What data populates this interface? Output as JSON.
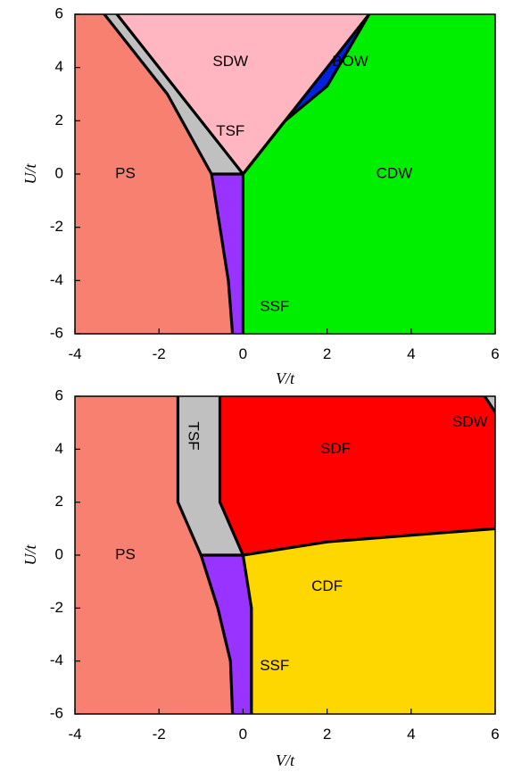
{
  "chart_data": [
    {
      "type": "area",
      "xlabel": "V/t",
      "ylabel": "U/t",
      "xlim": [
        -4,
        6
      ],
      "ylim": [
        -6,
        6
      ],
      "xticks": [
        -4,
        -2,
        0,
        2,
        4,
        6
      ],
      "yticks": [
        -6,
        -4,
        -2,
        0,
        2,
        4,
        6
      ],
      "grid": false,
      "regions": [
        {
          "name": "PS",
          "color": "#f88070",
          "polygon": [
            [
              -4,
              -6
            ],
            [
              -0.25,
              -6
            ],
            [
              -0.35,
              -4
            ],
            [
              -0.55,
              -2
            ],
            [
              -0.75,
              0
            ],
            [
              -1.8,
              3
            ],
            [
              -3.3,
              6
            ],
            [
              -4,
              6
            ]
          ],
          "label_at": [
            -2.8,
            0
          ]
        },
        {
          "name": "TSF",
          "color": "#c0c0c0",
          "polygon": [
            [
              -0.75,
              0
            ],
            [
              0,
              0
            ],
            [
              -3.0,
              6
            ],
            [
              -3.3,
              6
            ],
            [
              -1.8,
              3
            ]
          ],
          "label_at": [
            -0.3,
            1.6
          ]
        },
        {
          "name": "SDW",
          "color": "#ffb6c1",
          "polygon": [
            [
              0,
              0
            ],
            [
              -3.0,
              6
            ],
            [
              3.0,
              6
            ],
            [
              1.0,
              2.0
            ]
          ],
          "label_at": [
            -0.3,
            4.2
          ]
        },
        {
          "name": "BOW",
          "color": "#0022dd",
          "polygon": [
            [
              1.0,
              2.0
            ],
            [
              2.8,
              5.5
            ],
            [
              2.0,
              3.3
            ]
          ],
          "label_at": [
            2.55,
            4.2
          ]
        },
        {
          "name": "CDW",
          "color": "#00ee00",
          "polygon": [
            [
              0,
              0
            ],
            [
              1.0,
              2.0
            ],
            [
              2.0,
              3.3
            ],
            [
              2.8,
              5.5
            ],
            [
              3.0,
              6
            ],
            [
              6,
              6
            ],
            [
              6,
              -6
            ],
            [
              0,
              -6
            ]
          ],
          "label_at": [
            3.6,
            0
          ]
        },
        {
          "name": "SSF",
          "color": "#9933ff",
          "polygon": [
            [
              -0.75,
              0
            ],
            [
              0,
              0
            ],
            [
              0,
              -6
            ],
            [
              -0.25,
              -6
            ],
            [
              -0.35,
              -4
            ],
            [
              -0.55,
              -2
            ]
          ],
          "label_at": [
            0.75,
            -5.0
          ]
        }
      ],
      "boundaries": [
        [
          [
            -3.3,
            6
          ],
          [
            -1.8,
            3
          ],
          [
            -0.75,
            0
          ],
          [
            -0.55,
            -2
          ],
          [
            -0.35,
            -4
          ],
          [
            -0.25,
            -6
          ]
        ],
        [
          [
            -3.0,
            6
          ],
          [
            0,
            0
          ],
          [
            1.0,
            2.0
          ],
          [
            2.0,
            3.3
          ],
          [
            3.0,
            6
          ]
        ],
        [
          [
            0,
            0
          ],
          [
            3.0,
            6
          ]
        ],
        [
          [
            -0.75,
            0
          ],
          [
            0,
            0
          ]
        ],
        [
          [
            0,
            0
          ],
          [
            0,
            -6
          ]
        ]
      ]
    },
    {
      "type": "area",
      "xlabel": "V/t",
      "ylabel": "U/t",
      "xlim": [
        -4,
        6
      ],
      "ylim": [
        -6,
        6
      ],
      "xticks": [
        -4,
        -2,
        0,
        2,
        4,
        6
      ],
      "yticks": [
        -6,
        -4,
        -2,
        0,
        2,
        4,
        6
      ],
      "grid": false,
      "regions": [
        {
          "name": "PS",
          "color": "#f88070",
          "polygon": [
            [
              -4,
              -6
            ],
            [
              -0.25,
              -6
            ],
            [
              -0.3,
              -4
            ],
            [
              -0.6,
              -2
            ],
            [
              -1.0,
              0
            ],
            [
              -1.55,
              2
            ],
            [
              -1.55,
              6
            ],
            [
              -4,
              6
            ]
          ],
          "label_at": [
            -2.8,
            0
          ]
        },
        {
          "name": "TSF",
          "color": "#c0c0c0",
          "polygon": [
            [
              -1.55,
              6
            ],
            [
              -0.55,
              6
            ],
            [
              -0.55,
              2
            ],
            [
              0,
              0
            ],
            [
              -1.0,
              0
            ],
            [
              -1.55,
              2
            ]
          ],
          "label_at": [
            -1.2,
            4.5
          ],
          "rotate": 90
        },
        {
          "name": "SDF",
          "color": "#ff0000",
          "polygon": [
            [
              -0.55,
              6
            ],
            [
              5.75,
              6
            ],
            [
              6,
              5.4
            ],
            [
              6,
              1.0
            ],
            [
              2,
              0.5
            ],
            [
              0,
              0
            ],
            [
              -0.55,
              2
            ]
          ],
          "label_at": [
            2.2,
            4
          ]
        },
        {
          "name": "SDW",
          "color": "#c0c0c0",
          "polygon": [
            [
              5.75,
              6
            ],
            [
              6,
              6
            ],
            [
              6,
              5.4
            ]
          ],
          "label_at": [
            5.4,
            5.0
          ]
        },
        {
          "name": "CDF",
          "color": "#ffd700",
          "polygon": [
            [
              0,
              0
            ],
            [
              2,
              0.5
            ],
            [
              6,
              1.0
            ],
            [
              6,
              -6
            ],
            [
              0.2,
              -6
            ],
            [
              0.2,
              -2
            ]
          ],
          "label_at": [
            2.0,
            -1.2
          ]
        },
        {
          "name": "SSF",
          "color": "#9933ff",
          "polygon": [
            [
              -1.0,
              0
            ],
            [
              0,
              0
            ],
            [
              0.2,
              -2
            ],
            [
              0.2,
              -6
            ],
            [
              -0.25,
              -6
            ],
            [
              -0.3,
              -4
            ],
            [
              -0.6,
              -2
            ]
          ],
          "label_at": [
            0.75,
            -4.2
          ]
        }
      ],
      "boundaries": [
        [
          [
            -1.55,
            6
          ],
          [
            -1.55,
            2
          ],
          [
            -1.0,
            0
          ],
          [
            -0.6,
            -2
          ],
          [
            -0.3,
            -4
          ],
          [
            -0.25,
            -6
          ]
        ],
        [
          [
            -0.55,
            6
          ],
          [
            -0.55,
            2
          ],
          [
            0,
            0
          ]
        ],
        [
          [
            -1.0,
            0
          ],
          [
            0,
            0
          ]
        ],
        [
          [
            0,
            0
          ],
          [
            2,
            0.5
          ],
          [
            6,
            1.0
          ]
        ],
        [
          [
            0,
            0
          ],
          [
            0.2,
            -2
          ],
          [
            0.2,
            -6
          ]
        ],
        [
          [
            5.75,
            6
          ],
          [
            6,
            5.4
          ]
        ]
      ]
    }
  ]
}
